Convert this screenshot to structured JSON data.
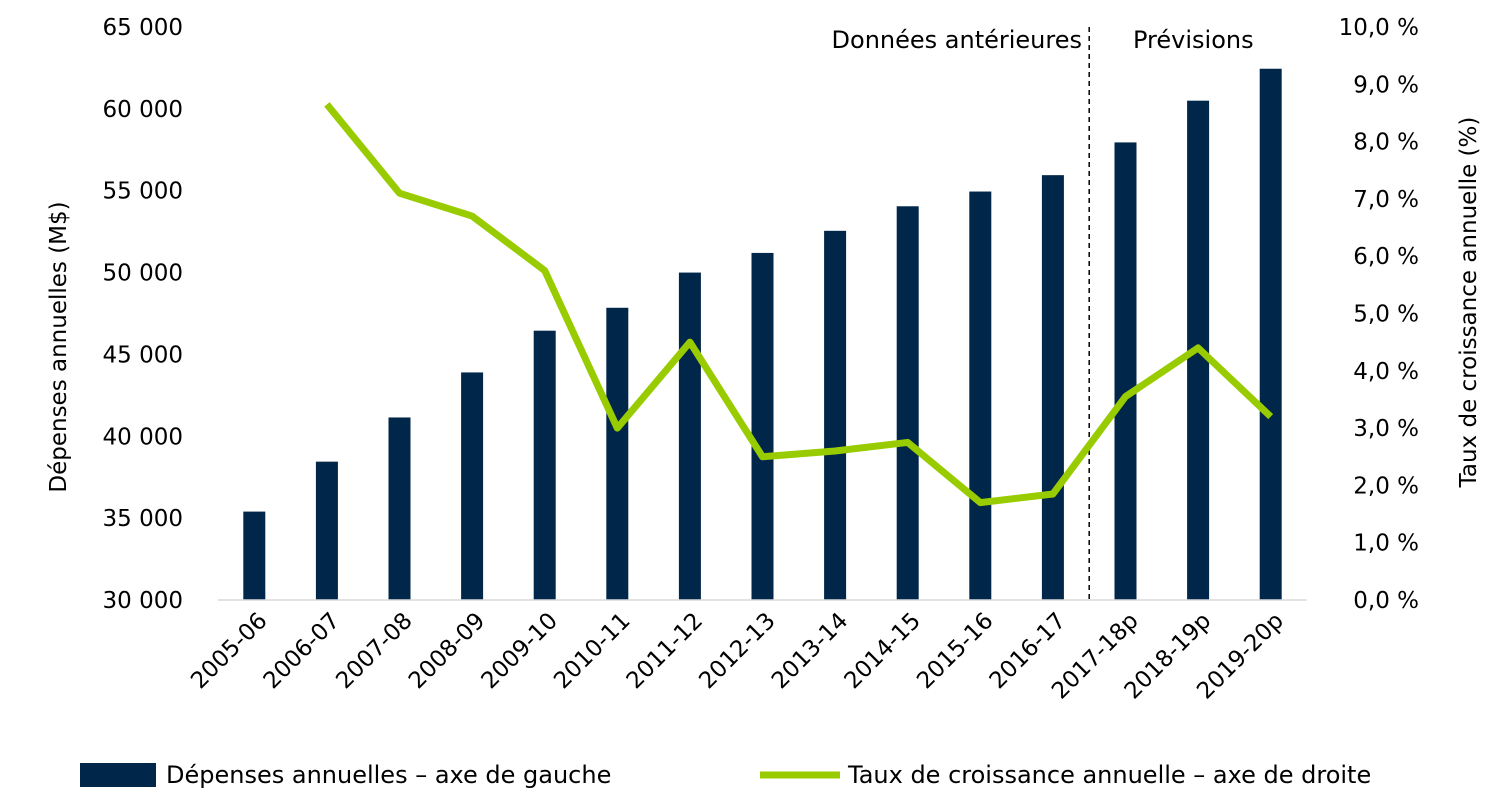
{
  "chart_data": {
    "type": "bar+line",
    "categories": [
      "2005-06",
      "2006-07",
      "2007-08",
      "2008-09",
      "2009-10",
      "2010-11",
      "2011-12",
      "2012-13",
      "2013-14",
      "2014-15",
      "2015-16",
      "2016-17",
      "2017-18p",
      "2018-19p",
      "2019-20p"
    ],
    "series": [
      {
        "name": "Dépenses annuelles – axe de gauche",
        "type": "bar",
        "axis": "left",
        "color": "#002649",
        "values": [
          35400,
          38450,
          41150,
          43900,
          46450,
          47850,
          50000,
          51200,
          52550,
          54050,
          54950,
          55950,
          57950,
          60500,
          62450
        ]
      },
      {
        "name": "Taux de croissance annuelle – axe de droite",
        "type": "line",
        "axis": "right",
        "color": "#99cc00",
        "values": [
          null,
          8.65,
          7.1,
          6.7,
          5.75,
          3.0,
          4.5,
          2.5,
          2.6,
          2.75,
          1.7,
          1.85,
          3.55,
          4.4,
          3.2
        ]
      }
    ],
    "ylabel_left": "Dépenses annuelles (M$)",
    "ylabel_right": "Taux de croissance annuelle (%)",
    "ylim_left": [
      30000,
      65000
    ],
    "ylim_right": [
      0,
      10
    ],
    "yticks_left": [
      "30 000",
      "35 000",
      "40 000",
      "45 000",
      "50 000",
      "55 000",
      "60 000",
      "65 000"
    ],
    "yticks_right": [
      "0,0 %",
      "1,0 %",
      "2,0 %",
      "3,0 %",
      "4,0 %",
      "5,0 %",
      "6,0 %",
      "7,0 %",
      "8,0 %",
      "9,0 %",
      "10,0 %"
    ],
    "annotations": {
      "historical": "Données antérieures",
      "forecast": "Prévisions"
    },
    "divider_after_category": "2016-17",
    "grid": false,
    "legend_position": "bottom"
  }
}
